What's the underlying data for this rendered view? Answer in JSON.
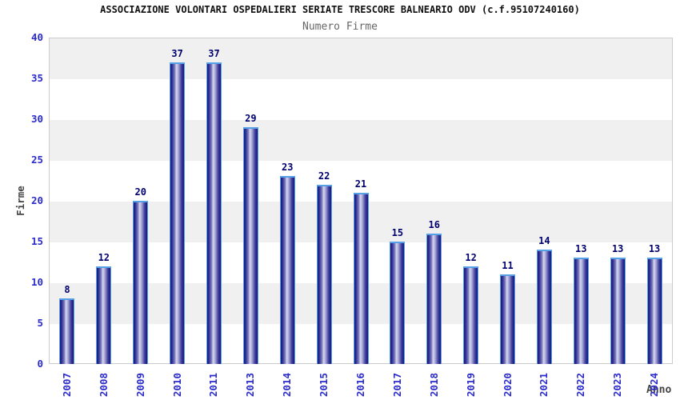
{
  "chart_data": {
    "type": "bar",
    "title": "ASSOCIAZIONE VOLONTARI OSPEDALIERI SERIATE TRESCORE BALNEARIO ODV (c.f.95107240160)",
    "subtitle": "Numero Firme",
    "xlabel": "Anno",
    "ylabel": "Firme",
    "categories": [
      "2007",
      "2008",
      "2009",
      "2010",
      "2011",
      "2013",
      "2014",
      "2015",
      "2016",
      "2017",
      "2018",
      "2019",
      "2020",
      "2021",
      "2022",
      "2023",
      "2024"
    ],
    "values": [
      8,
      12,
      20,
      37,
      37,
      29,
      23,
      22,
      21,
      15,
      16,
      12,
      11,
      14,
      13,
      13,
      13
    ],
    "ylim": [
      0,
      40
    ],
    "yticks": [
      0,
      5,
      10,
      15,
      20,
      25,
      30,
      35,
      40
    ],
    "grid": "alternating-horizontal-bands",
    "legend_position": "none",
    "colors": {
      "title": "#111111",
      "subtitle": "#666666",
      "axis_label": "#444444",
      "tick_label": "#2b2bcc",
      "value_label": "#00006e",
      "bar_edge": "#17177c",
      "bar_center": "#d8d8ee",
      "bar_outline": "#55a0e6",
      "band_gray": "#f0f0f0",
      "band_white": "#ffffff",
      "plot_border": "#cccccc"
    }
  }
}
